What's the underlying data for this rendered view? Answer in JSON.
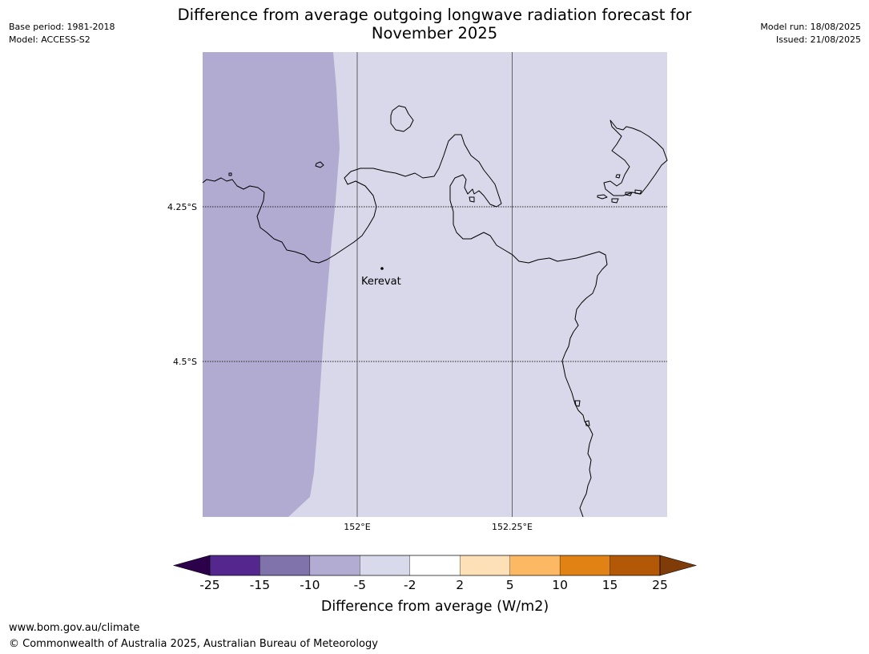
{
  "header": {
    "title_line1": "Difference from average outgoing longwave radiation forecast for",
    "title_line2": "November 2025",
    "base_period": "Base period: 1981-2018",
    "model": "Model: ACCESS-S2",
    "model_run": "Model run: 18/08/2025",
    "issued": "Issued: 21/08/2025"
  },
  "map": {
    "lat_labels": [
      "4.25°S",
      "4.5°S"
    ],
    "lon_labels": [
      "152°E",
      "152.25°E"
    ],
    "place": {
      "name": "Kerevat"
    },
    "colors": {
      "anomaly_neg_5_to_neg_10": "#b1abd2",
      "anomaly_neg_2_to_neg_5": "#d8d8ea",
      "coastline": "#000000",
      "grid": "#555555"
    }
  },
  "colorbar": {
    "title": "Difference from average (W/m2)",
    "ticks": [
      "-25",
      "-15",
      "-10",
      "-5",
      "-2",
      "2",
      "5",
      "10",
      "15",
      "25"
    ],
    "bins": [
      {
        "color": "#54278f"
      },
      {
        "color": "#8073ac"
      },
      {
        "color": "#b2abd2"
      },
      {
        "color": "#d8daeb"
      },
      {
        "color": "#ffffff"
      },
      {
        "color": "#fee0b6"
      },
      {
        "color": "#fdb863"
      },
      {
        "color": "#e08214"
      },
      {
        "color": "#b35806"
      }
    ],
    "extend_low_color": "#2d004b",
    "extend_high_color": "#7f3b08"
  },
  "footer": {
    "url": "www.bom.gov.au/climate",
    "copyright": "© Commonwealth of Australia 2025, Australian Bureau of Meteorology"
  }
}
